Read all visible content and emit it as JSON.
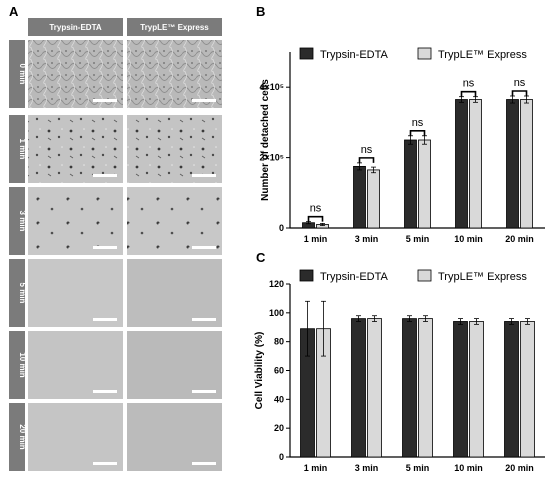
{
  "panels": {
    "a": "A",
    "b": "B",
    "c": "C"
  },
  "micrographs": {
    "columns": [
      "Trypsin-EDTA",
      "TrypLE™ Express"
    ],
    "rows": [
      "0 min",
      "1 min",
      "3 min",
      "5 min",
      "10 min",
      "20 min"
    ]
  },
  "chart_data": [
    {
      "type": "bar",
      "panel": "B",
      "categories": [
        "1 min",
        "3 min",
        "5 min",
        "10 min",
        "20 min"
      ],
      "series": [
        {
          "name": "Trypsin-EDTA",
          "values": [
            15000,
            175000,
            250000,
            365000,
            365000
          ],
          "errors": [
            3000,
            10000,
            12000,
            8000,
            10000
          ],
          "color": "#2b2b2b"
        },
        {
          "name": "TrypLE™ Express",
          "values": [
            10000,
            165000,
            250000,
            365000,
            365000
          ],
          "errors": [
            3000,
            8000,
            12000,
            8000,
            10000
          ],
          "color": "#d9d9d9"
        }
      ],
      "ylabel": "Number of detached cells",
      "ylim": [
        0,
        500000
      ],
      "yticks": [
        0,
        200000,
        400000
      ],
      "ytick_labels": [
        "0",
        "2×10⁵",
        "4×10⁵"
      ],
      "annotations": [
        "ns",
        "ns",
        "ns",
        "ns",
        "ns"
      ],
      "legend": "top-right"
    },
    {
      "type": "bar",
      "panel": "C",
      "categories": [
        "1 min",
        "3 min",
        "5 min",
        "10 min",
        "20 min"
      ],
      "series": [
        {
          "name": "Trypsin-EDTA",
          "values": [
            89,
            96,
            96,
            94,
            94
          ],
          "errors": [
            19,
            2,
            2,
            2,
            2
          ],
          "color": "#2b2b2b"
        },
        {
          "name": "TrypLE™ Express",
          "values": [
            89,
            96,
            96,
            94,
            94
          ],
          "errors": [
            19,
            2,
            2,
            2,
            2
          ],
          "color": "#d9d9d9"
        }
      ],
      "ylabel": "Cell Viability (%)",
      "ylim": [
        0,
        120
      ],
      "yticks": [
        0,
        20,
        40,
        60,
        80,
        100,
        120
      ],
      "ytick_labels": [
        "0",
        "20",
        "40",
        "60",
        "80",
        "100",
        "120"
      ],
      "legend": "top"
    }
  ]
}
